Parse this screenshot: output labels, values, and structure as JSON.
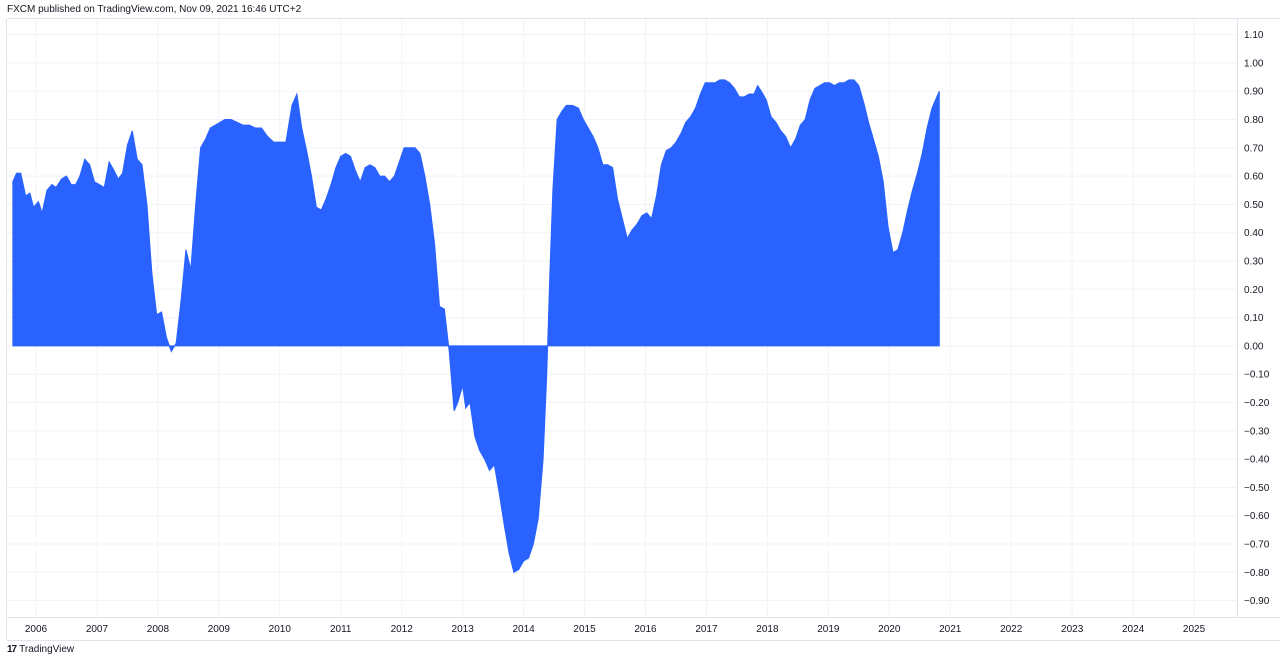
{
  "header": {
    "text": "FXCM published on TradingView.com, Nov 09, 2021 16:46 UTC+2"
  },
  "footer": {
    "logo": "17",
    "brand": "TradingView"
  },
  "colors": {
    "area": "#2962ff",
    "grid": "#f0f3fa",
    "axis_line": "#e0e3eb",
    "text": "#131722"
  },
  "chart_data": {
    "type": "area",
    "title": "",
    "xlabel": "",
    "ylabel": "",
    "grid": true,
    "ylim": [
      -0.97,
      1.14
    ],
    "xlim": [
      2005.62,
      2025.75
    ],
    "y_ticks": [
      "1.10",
      "1.00",
      "0.90",
      "0.80",
      "0.70",
      "0.60",
      "0.50",
      "0.40",
      "0.30",
      "0.20",
      "0.10",
      "0.00",
      "−0.10",
      "−0.20",
      "−0.30",
      "−0.40",
      "−0.50",
      "−0.60",
      "−0.70",
      "−0.80",
      "−0.90"
    ],
    "x_ticks": [
      "2006",
      "2007",
      "2008",
      "2009",
      "2010",
      "2011",
      "2012",
      "2013",
      "2014",
      "2015",
      "2016",
      "2017",
      "2018",
      "2019",
      "2020",
      "2021",
      "2022",
      "2023",
      "2024",
      "2025"
    ],
    "series": [
      {
        "points": [
          [
            2005.62,
            0.58
          ],
          [
            2005.68,
            0.61
          ],
          [
            2005.75,
            0.61
          ],
          [
            2005.83,
            0.53
          ],
          [
            2005.9,
            0.54
          ],
          [
            2005.96,
            0.49
          ],
          [
            2006.04,
            0.51
          ],
          [
            2006.1,
            0.47
          ],
          [
            2006.18,
            0.55
          ],
          [
            2006.26,
            0.57
          ],
          [
            2006.33,
            0.56
          ],
          [
            2006.42,
            0.59
          ],
          [
            2006.5,
            0.6
          ],
          [
            2006.58,
            0.57
          ],
          [
            2006.65,
            0.57
          ],
          [
            2006.72,
            0.6
          ],
          [
            2006.8,
            0.66
          ],
          [
            2006.88,
            0.64
          ],
          [
            2006.96,
            0.58
          ],
          [
            2007.04,
            0.57
          ],
          [
            2007.12,
            0.56
          ],
          [
            2007.2,
            0.65
          ],
          [
            2007.28,
            0.62
          ],
          [
            2007.35,
            0.59
          ],
          [
            2007.42,
            0.61
          ],
          [
            2007.5,
            0.71
          ],
          [
            2007.58,
            0.76
          ],
          [
            2007.66,
            0.66
          ],
          [
            2007.74,
            0.64
          ],
          [
            2007.82,
            0.5
          ],
          [
            2007.9,
            0.26
          ],
          [
            2007.98,
            0.11
          ],
          [
            2008.06,
            0.12
          ],
          [
            2008.14,
            0.03
          ],
          [
            2008.22,
            -0.02
          ],
          [
            2008.3,
            0.01
          ],
          [
            2008.38,
            0.16
          ],
          [
            2008.46,
            0.34
          ],
          [
            2008.54,
            0.27
          ],
          [
            2008.62,
            0.5
          ],
          [
            2008.7,
            0.7
          ],
          [
            2008.78,
            0.73
          ],
          [
            2008.86,
            0.77
          ],
          [
            2008.94,
            0.78
          ],
          [
            2009.02,
            0.79
          ],
          [
            2009.1,
            0.8
          ],
          [
            2009.2,
            0.8
          ],
          [
            2009.3,
            0.79
          ],
          [
            2009.4,
            0.78
          ],
          [
            2009.5,
            0.78
          ],
          [
            2009.6,
            0.77
          ],
          [
            2009.7,
            0.77
          ],
          [
            2009.8,
            0.74
          ],
          [
            2009.9,
            0.72
          ],
          [
            2010.0,
            0.72
          ],
          [
            2010.1,
            0.72
          ],
          [
            2010.2,
            0.85
          ],
          [
            2010.28,
            0.89
          ],
          [
            2010.36,
            0.77
          ],
          [
            2010.44,
            0.69
          ],
          [
            2010.52,
            0.6
          ],
          [
            2010.6,
            0.49
          ],
          [
            2010.68,
            0.48
          ],
          [
            2010.76,
            0.52
          ],
          [
            2010.84,
            0.57
          ],
          [
            2010.92,
            0.63
          ],
          [
            2011.0,
            0.67
          ],
          [
            2011.08,
            0.68
          ],
          [
            2011.16,
            0.67
          ],
          [
            2011.24,
            0.62
          ],
          [
            2011.32,
            0.58
          ],
          [
            2011.4,
            0.63
          ],
          [
            2011.48,
            0.64
          ],
          [
            2011.56,
            0.63
          ],
          [
            2011.64,
            0.6
          ],
          [
            2011.72,
            0.6
          ],
          [
            2011.8,
            0.58
          ],
          [
            2011.88,
            0.6
          ],
          [
            2011.96,
            0.65
          ],
          [
            2012.04,
            0.7
          ],
          [
            2012.12,
            0.7
          ],
          [
            2012.22,
            0.7
          ],
          [
            2012.3,
            0.68
          ],
          [
            2012.38,
            0.6
          ],
          [
            2012.46,
            0.5
          ],
          [
            2012.54,
            0.36
          ],
          [
            2012.62,
            0.14
          ],
          [
            2012.7,
            0.13
          ],
          [
            2012.78,
            -0.02
          ],
          [
            2012.86,
            -0.23
          ],
          [
            2012.92,
            -0.2
          ],
          [
            2013.0,
            -0.14
          ],
          [
            2013.05,
            -0.22
          ],
          [
            2013.12,
            -0.2
          ],
          [
            2013.2,
            -0.32
          ],
          [
            2013.28,
            -0.37
          ],
          [
            2013.36,
            -0.4
          ],
          [
            2013.44,
            -0.44
          ],
          [
            2013.52,
            -0.42
          ],
          [
            2013.6,
            -0.52
          ],
          [
            2013.68,
            -0.63
          ],
          [
            2013.76,
            -0.73
          ],
          [
            2013.84,
            -0.8
          ],
          [
            2013.92,
            -0.79
          ],
          [
            2014.0,
            -0.76
          ],
          [
            2014.08,
            -0.75
          ],
          [
            2014.16,
            -0.7
          ],
          [
            2014.24,
            -0.61
          ],
          [
            2014.32,
            -0.4
          ],
          [
            2014.38,
            -0.1
          ],
          [
            2014.43,
            0.25
          ],
          [
            2014.48,
            0.55
          ],
          [
            2014.55,
            0.8
          ],
          [
            2014.63,
            0.83
          ],
          [
            2014.7,
            0.85
          ],
          [
            2014.8,
            0.85
          ],
          [
            2014.9,
            0.84
          ],
          [
            2014.98,
            0.8
          ],
          [
            2015.06,
            0.77
          ],
          [
            2015.14,
            0.74
          ],
          [
            2015.22,
            0.7
          ],
          [
            2015.3,
            0.64
          ],
          [
            2015.38,
            0.64
          ],
          [
            2015.46,
            0.63
          ],
          [
            2015.54,
            0.52
          ],
          [
            2015.62,
            0.45
          ],
          [
            2015.7,
            0.38
          ],
          [
            2015.78,
            0.41
          ],
          [
            2015.86,
            0.43
          ],
          [
            2015.94,
            0.46
          ],
          [
            2016.02,
            0.47
          ],
          [
            2016.1,
            0.45
          ],
          [
            2016.18,
            0.53
          ],
          [
            2016.26,
            0.64
          ],
          [
            2016.34,
            0.69
          ],
          [
            2016.42,
            0.7
          ],
          [
            2016.5,
            0.72
          ],
          [
            2016.58,
            0.75
          ],
          [
            2016.66,
            0.79
          ],
          [
            2016.74,
            0.81
          ],
          [
            2016.82,
            0.84
          ],
          [
            2016.9,
            0.89
          ],
          [
            2016.98,
            0.93
          ],
          [
            2017.06,
            0.93
          ],
          [
            2017.14,
            0.93
          ],
          [
            2017.22,
            0.94
          ],
          [
            2017.3,
            0.94
          ],
          [
            2017.38,
            0.93
          ],
          [
            2017.46,
            0.91
          ],
          [
            2017.54,
            0.88
          ],
          [
            2017.62,
            0.88
          ],
          [
            2017.7,
            0.89
          ],
          [
            2017.78,
            0.89
          ],
          [
            2017.84,
            0.92
          ],
          [
            2017.9,
            0.9
          ],
          [
            2017.98,
            0.87
          ],
          [
            2018.06,
            0.81
          ],
          [
            2018.14,
            0.79
          ],
          [
            2018.22,
            0.76
          ],
          [
            2018.3,
            0.74
          ],
          [
            2018.38,
            0.7
          ],
          [
            2018.46,
            0.73
          ],
          [
            2018.54,
            0.78
          ],
          [
            2018.62,
            0.8
          ],
          [
            2018.7,
            0.87
          ],
          [
            2018.78,
            0.91
          ],
          [
            2018.86,
            0.92
          ],
          [
            2018.94,
            0.93
          ],
          [
            2019.02,
            0.93
          ],
          [
            2019.1,
            0.92
          ],
          [
            2019.18,
            0.93
          ],
          [
            2019.26,
            0.93
          ],
          [
            2019.34,
            0.94
          ],
          [
            2019.42,
            0.94
          ],
          [
            2019.5,
            0.92
          ],
          [
            2019.58,
            0.86
          ],
          [
            2019.66,
            0.79
          ],
          [
            2019.74,
            0.73
          ],
          [
            2019.82,
            0.67
          ],
          [
            2019.9,
            0.58
          ],
          [
            2019.98,
            0.42
          ],
          [
            2020.06,
            0.33
          ],
          [
            2020.14,
            0.34
          ],
          [
            2020.22,
            0.4
          ],
          [
            2020.3,
            0.48
          ],
          [
            2020.38,
            0.55
          ],
          [
            2020.46,
            0.61
          ],
          [
            2020.54,
            0.68
          ],
          [
            2020.62,
            0.77
          ],
          [
            2020.7,
            0.84
          ],
          [
            2020.78,
            0.88
          ],
          [
            2020.82,
            0.9
          ]
        ]
      }
    ]
  }
}
